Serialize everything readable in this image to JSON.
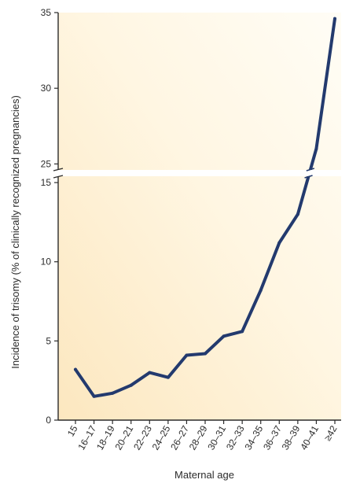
{
  "chart_data": {
    "type": "line",
    "xlabel": "Maternal age",
    "ylabel": "Incidence of trisomy (% of clinically recognized pregnancies)",
    "categories": [
      "15",
      "16–17",
      "18–19",
      "20–21",
      "22–23",
      "24–25",
      "26–27",
      "28–29",
      "30–31",
      "32–33",
      "34–35",
      "36–37",
      "38–39",
      "40–41",
      "≥42"
    ],
    "values": [
      3.2,
      1.5,
      1.7,
      2.2,
      3.0,
      2.7,
      4.1,
      4.2,
      5.3,
      5.6,
      8.2,
      11.2,
      13.0,
      26.0,
      34.6
    ],
    "axis_break": {
      "between": [
        15.6,
        24.5
      ]
    },
    "y_ticks_lower": [
      0,
      5,
      10,
      15
    ],
    "y_ticks_upper": [
      25,
      30,
      35
    ],
    "ylim_lower": [
      0,
      15.6
    ],
    "ylim_upper": [
      24.5,
      35
    ],
    "grid": false,
    "line_color": "#233a6e",
    "background_gradient": [
      "#fce7bf",
      "#fffdf6"
    ]
  }
}
